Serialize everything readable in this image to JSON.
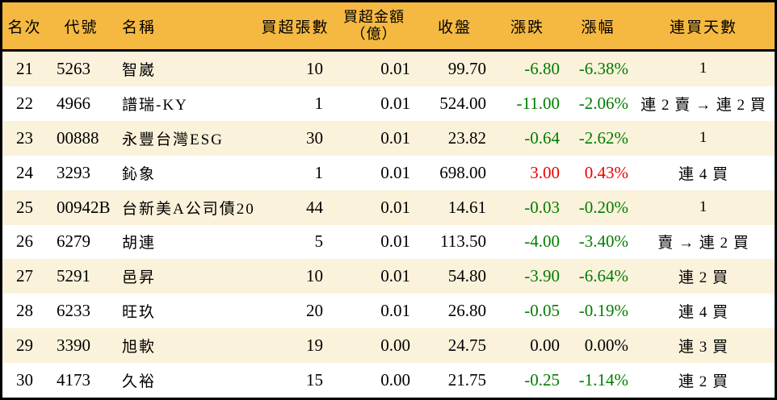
{
  "colors": {
    "header_bg": "#F5B942",
    "row_alt": "#FBF2DB",
    "row_plain": "#FFFFFF",
    "border": "#000000",
    "up_red": "#EE0000",
    "down_green": "#007D00",
    "flat_black": "#000000"
  },
  "table": {
    "columns": [
      {
        "key": "rank",
        "label": "名次"
      },
      {
        "key": "code",
        "label": "代號"
      },
      {
        "key": "name",
        "label": "名稱"
      },
      {
        "key": "volume",
        "label": "買超張數"
      },
      {
        "key": "amount",
        "label": "買超金額",
        "label2": "（億）"
      },
      {
        "key": "close",
        "label": "收盤"
      },
      {
        "key": "change",
        "label": "漲跌"
      },
      {
        "key": "pct",
        "label": "漲幅"
      },
      {
        "key": "days",
        "label": "連買天數"
      }
    ],
    "rows": [
      {
        "rank": "21",
        "code": "5263",
        "name": "智崴",
        "volume": "10",
        "amount": "0.01",
        "close": "99.70",
        "change": "-6.80",
        "pct": "-6.38%",
        "days": "1",
        "trend": "down"
      },
      {
        "rank": "22",
        "code": "4966",
        "name": "譜瑞-KY",
        "volume": "1",
        "amount": "0.01",
        "close": "524.00",
        "change": "-11.00",
        "pct": "-2.06%",
        "days": "連 2 賣 → 連 2 買",
        "trend": "down"
      },
      {
        "rank": "23",
        "code": "00888",
        "name": "永豐台灣ESG",
        "volume": "30",
        "amount": "0.01",
        "close": "23.82",
        "change": "-0.64",
        "pct": "-2.62%",
        "days": "1",
        "trend": "down"
      },
      {
        "rank": "24",
        "code": "3293",
        "name": "鈊象",
        "volume": "1",
        "amount": "0.01",
        "close": "698.00",
        "change": "3.00",
        "pct": "0.43%",
        "days": "連 4 買",
        "trend": "up"
      },
      {
        "rank": "25",
        "code": "00942B",
        "name": "台新美A公司債20",
        "volume": "44",
        "amount": "0.01",
        "close": "14.61",
        "change": "-0.03",
        "pct": "-0.20%",
        "days": "1",
        "trend": "down"
      },
      {
        "rank": "26",
        "code": "6279",
        "name": "胡連",
        "volume": "5",
        "amount": "0.01",
        "close": "113.50",
        "change": "-4.00",
        "pct": "-3.40%",
        "days": "賣 → 連 2 買",
        "trend": "down"
      },
      {
        "rank": "27",
        "code": "5291",
        "name": "邑昇",
        "volume": "10",
        "amount": "0.01",
        "close": "54.80",
        "change": "-3.90",
        "pct": "-6.64%",
        "days": "連 2 買",
        "trend": "down"
      },
      {
        "rank": "28",
        "code": "6233",
        "name": "旺玖",
        "volume": "20",
        "amount": "0.01",
        "close": "26.80",
        "change": "-0.05",
        "pct": "-0.19%",
        "days": "連 4 買",
        "trend": "down"
      },
      {
        "rank": "29",
        "code": "3390",
        "name": "旭軟",
        "volume": "19",
        "amount": "0.00",
        "close": "24.75",
        "change": "0.00",
        "pct": "0.00%",
        "days": "連 3 買",
        "trend": "flat"
      },
      {
        "rank": "30",
        "code": "4173",
        "name": "久裕",
        "volume": "15",
        "amount": "0.00",
        "close": "21.75",
        "change": "-0.25",
        "pct": "-1.14%",
        "days": "連 2 買",
        "trend": "down"
      }
    ]
  }
}
